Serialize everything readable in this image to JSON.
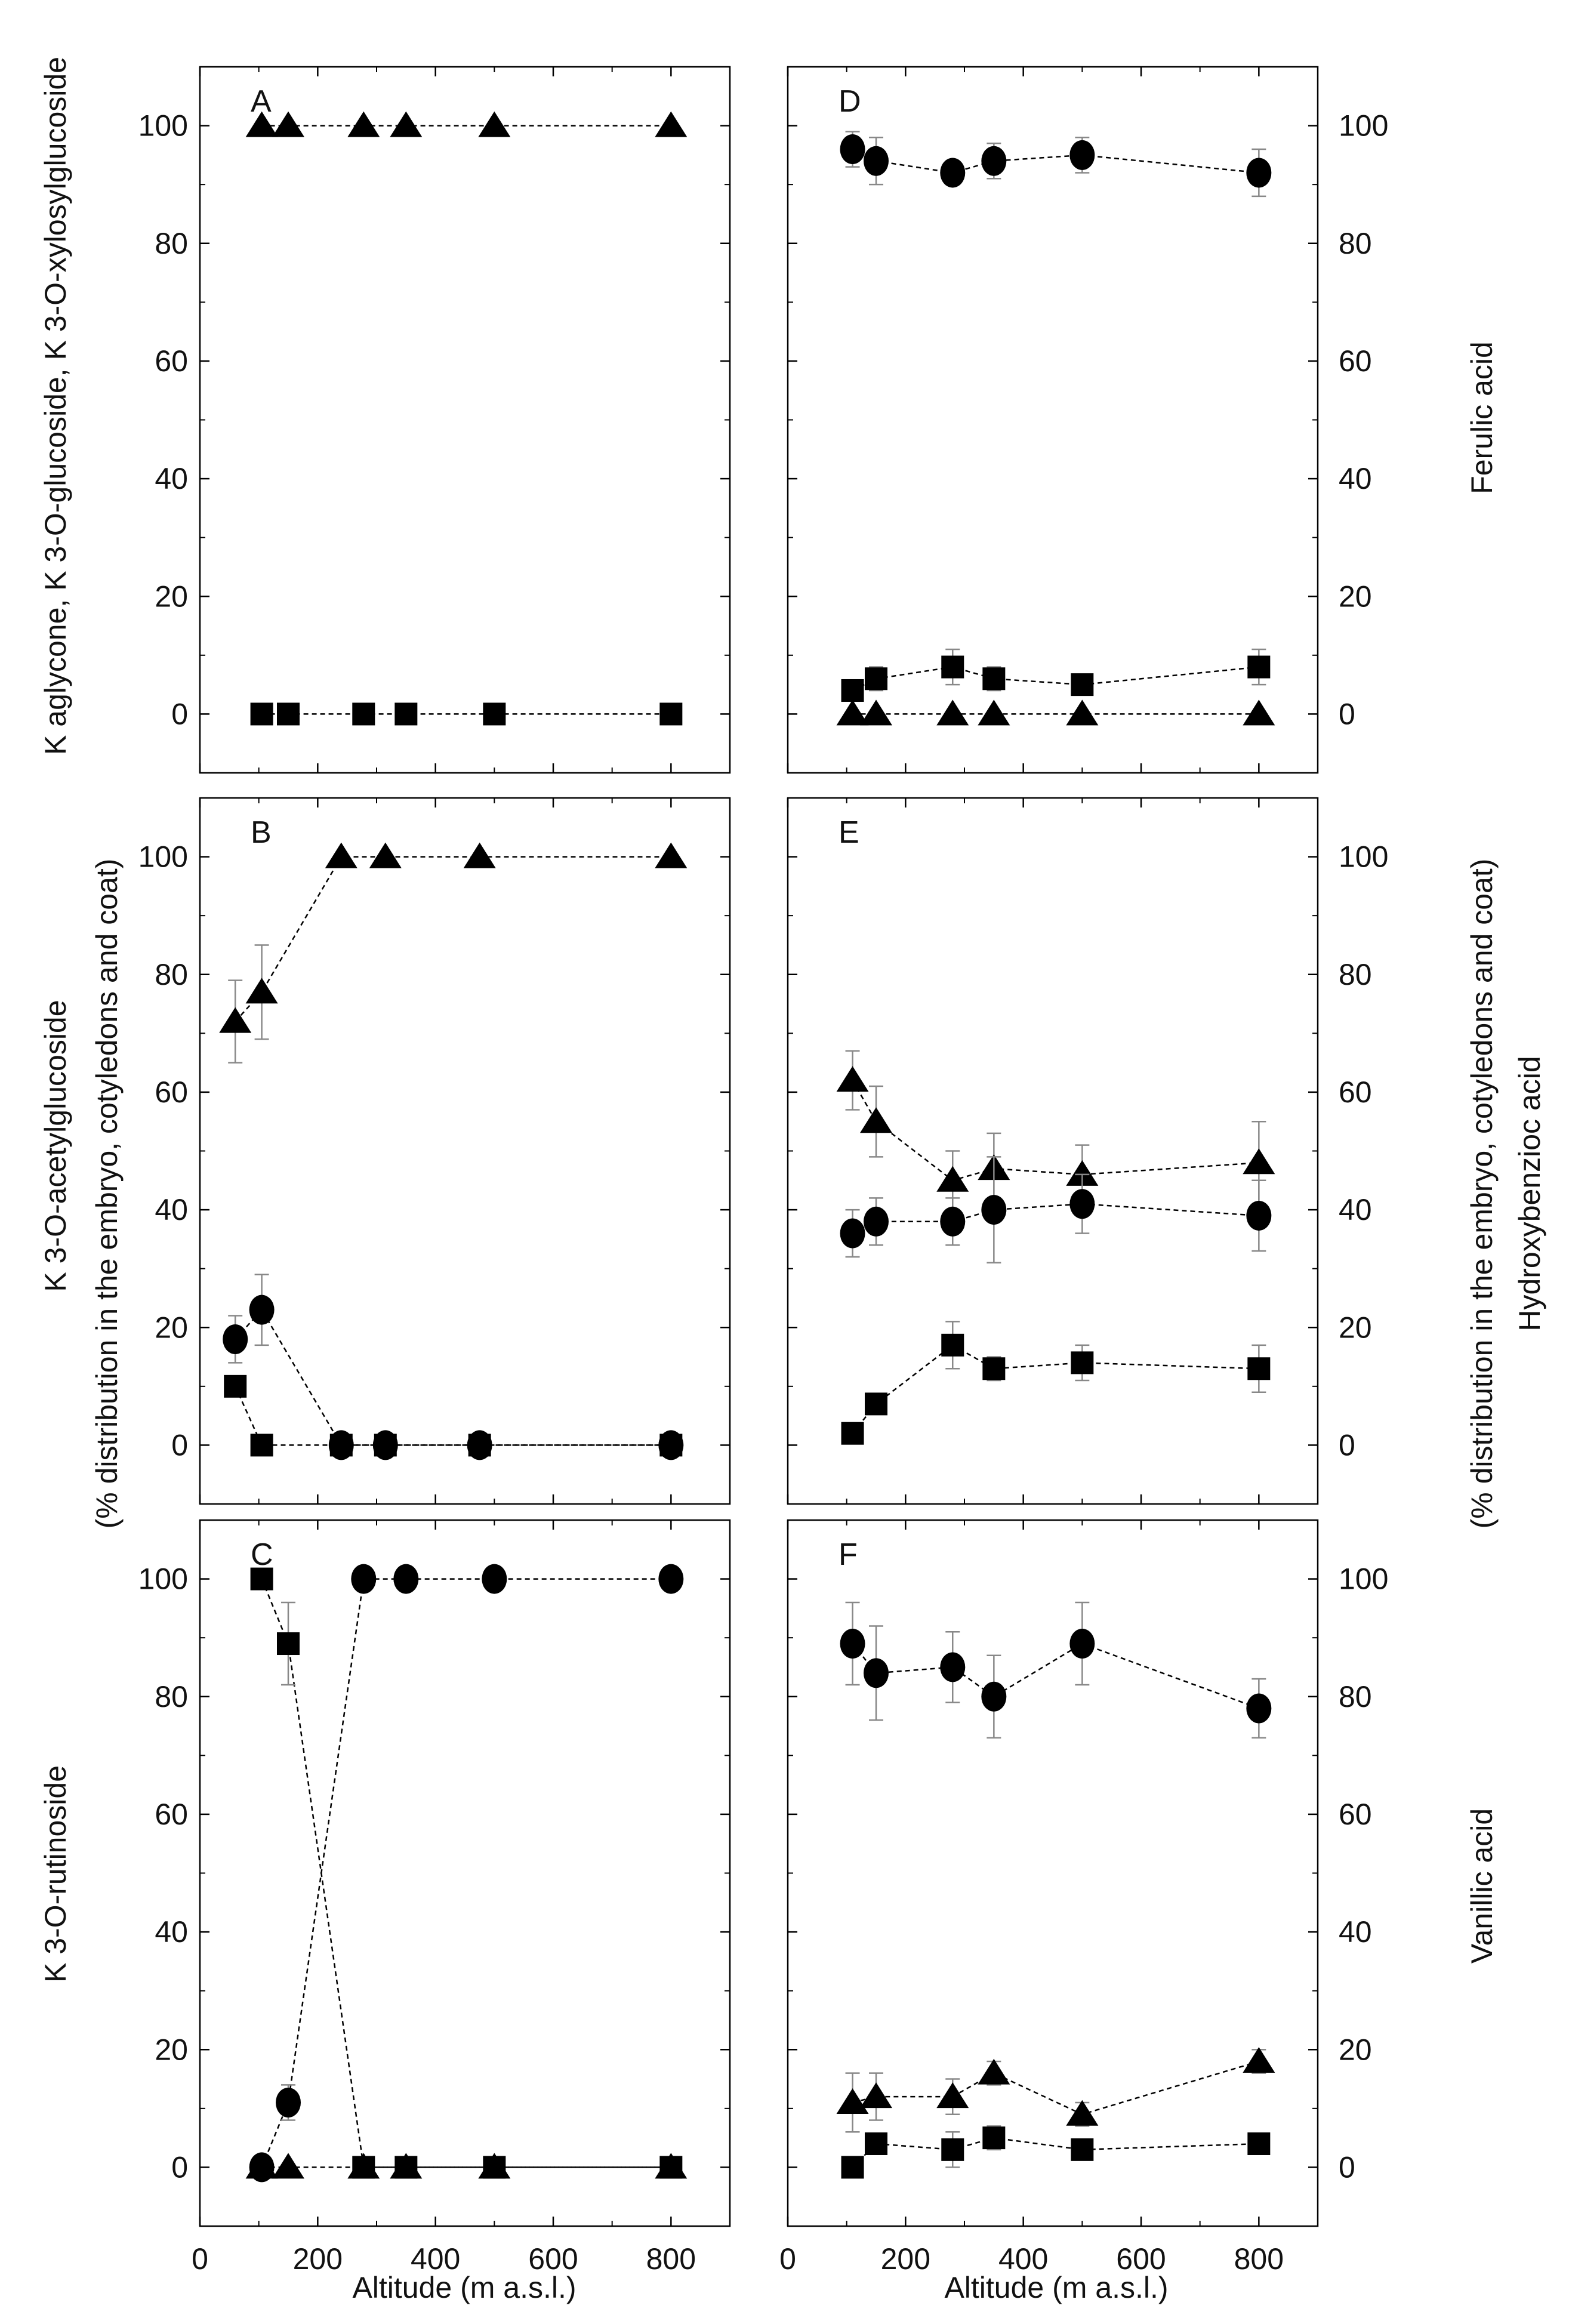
{
  "figure": {
    "left_axis_title_lines": [
      "(% distribution in the embryo, cotyledons and coat)"
    ],
    "right_axis_title_lines": [
      "(% distribution in the embryo, cotyledons and coat)"
    ],
    "x_axis_title": "Altitude (m a.s.l.)",
    "row_labels_left": [
      "K aglycone, K 3-O-glucoside, K 3-O-xylosylglucoside",
      "K 3-O-acetylglucoside",
      "K 3-O-rutinoside"
    ],
    "row_labels_right": [
      "Ferulic acid",
      "Hydroxybenzioc acid",
      "Vanillic acid"
    ],
    "colors": {
      "marker": "#000000",
      "line": "#000000",
      "error_bar": "#888888"
    }
  },
  "chart_data": [
    {
      "panel": "A",
      "type": "scatter",
      "xlim": [
        0,
        900
      ],
      "ylim": [
        -10,
        110
      ],
      "xticks": [
        0,
        200,
        400,
        600,
        800
      ],
      "yticks": [
        0,
        20,
        40,
        60,
        80,
        100
      ],
      "series": [
        {
          "name": "triangle",
          "marker": "triangle",
          "x": [
            105,
            150,
            278,
            350,
            500,
            800
          ],
          "y": [
            100,
            100,
            100,
            100,
            100,
            100
          ],
          "err": [
            0,
            0,
            0,
            0,
            0,
            0
          ]
        },
        {
          "name": "square",
          "marker": "square",
          "x": [
            105,
            150,
            278,
            350,
            500,
            800
          ],
          "y": [
            0,
            0,
            0,
            0,
            0,
            0
          ],
          "err": [
            0,
            0,
            0,
            0,
            0,
            0
          ]
        }
      ]
    },
    {
      "panel": "B",
      "type": "scatter",
      "xlim": [
        0,
        900
      ],
      "ylim": [
        -10,
        110
      ],
      "xticks": [
        0,
        200,
        400,
        600,
        800
      ],
      "yticks": [
        0,
        20,
        40,
        60,
        80,
        100
      ],
      "series": [
        {
          "name": "triangle",
          "marker": "triangle",
          "x": [
            60,
            105,
            240,
            315,
            475,
            800
          ],
          "y": [
            72,
            77,
            100,
            100,
            100,
            100
          ],
          "err": [
            7,
            8,
            0,
            0,
            0,
            0
          ]
        },
        {
          "name": "circle",
          "marker": "circle",
          "x": [
            60,
            105,
            240,
            315,
            475,
            800
          ],
          "y": [
            18,
            23,
            0,
            0,
            0,
            0
          ],
          "err": [
            4,
            6,
            0,
            0,
            0,
            0
          ]
        },
        {
          "name": "square",
          "marker": "square",
          "x": [
            60,
            105,
            240,
            315,
            475,
            800
          ],
          "y": [
            10,
            0,
            0,
            0,
            0,
            0
          ],
          "err": [
            1.5,
            0,
            0,
            0,
            0,
            0
          ]
        }
      ]
    },
    {
      "panel": "C",
      "type": "scatter",
      "xlim": [
        0,
        900
      ],
      "ylim": [
        -10,
        110
      ],
      "xticks": [
        0,
        200,
        400,
        600,
        800
      ],
      "yticks": [
        0,
        20,
        40,
        60,
        80,
        100
      ],
      "series": [
        {
          "name": "square",
          "marker": "square",
          "x": [
            105,
            150,
            278,
            350,
            500,
            800
          ],
          "y": [
            100,
            89,
            0,
            0,
            0,
            0
          ],
          "err": [
            0,
            7,
            0,
            0,
            0,
            0
          ]
        },
        {
          "name": "circle",
          "marker": "circle",
          "x": [
            105,
            150,
            278,
            350,
            500,
            800
          ],
          "y": [
            0,
            11,
            100,
            100,
            100,
            100
          ],
          "err": [
            0,
            3,
            0,
            0,
            0,
            0
          ]
        },
        {
          "name": "triangle",
          "marker": "triangle",
          "x": [
            105,
            150,
            278,
            350,
            500,
            800
          ],
          "y": [
            0,
            0,
            0,
            0,
            0,
            0
          ],
          "err": [
            0,
            0,
            0,
            0,
            0,
            0
          ]
        }
      ]
    },
    {
      "panel": "D",
      "type": "scatter",
      "xlim": [
        0,
        900
      ],
      "ylim": [
        -10,
        110
      ],
      "xticks": [
        0,
        200,
        400,
        600,
        800
      ],
      "yticks": [
        0,
        20,
        40,
        60,
        80,
        100
      ],
      "series": [
        {
          "name": "circle",
          "marker": "circle",
          "x": [
            110,
            150,
            280,
            350,
            500,
            800
          ],
          "y": [
            96,
            94,
            92,
            94,
            95,
            92
          ],
          "err": [
            3,
            4,
            2,
            3,
            3,
            4
          ]
        },
        {
          "name": "square",
          "marker": "square",
          "x": [
            110,
            150,
            280,
            350,
            500,
            800
          ],
          "y": [
            4,
            6,
            8,
            6,
            5,
            8
          ],
          "err": [
            1,
            2,
            3,
            2,
            1,
            3
          ]
        },
        {
          "name": "triangle",
          "marker": "triangle",
          "x": [
            110,
            150,
            280,
            350,
            500,
            800
          ],
          "y": [
            0,
            0,
            0,
            0,
            0,
            0
          ],
          "err": [
            0,
            0,
            0,
            0,
            0,
            0
          ]
        }
      ]
    },
    {
      "panel": "E",
      "type": "scatter",
      "xlim": [
        0,
        900
      ],
      "ylim": [
        -10,
        110
      ],
      "xticks": [
        0,
        200,
        400,
        600,
        800
      ],
      "yticks": [
        0,
        20,
        40,
        60,
        80,
        100
      ],
      "series": [
        {
          "name": "triangle",
          "marker": "triangle",
          "x": [
            110,
            150,
            280,
            350,
            500,
            800
          ],
          "y": [
            62,
            55,
            45,
            47,
            46,
            48
          ],
          "err": [
            5,
            6,
            5,
            6,
            5,
            7
          ]
        },
        {
          "name": "circle",
          "marker": "circle",
          "x": [
            110,
            150,
            280,
            350,
            500,
            800
          ],
          "y": [
            36,
            38,
            38,
            40,
            41,
            39
          ],
          "err": [
            4,
            4,
            4,
            9,
            5,
            6
          ]
        },
        {
          "name": "square",
          "marker": "square",
          "x": [
            110,
            150,
            280,
            350,
            500,
            800
          ],
          "y": [
            2,
            7,
            17,
            13,
            14,
            13
          ],
          "err": [
            0,
            1,
            4,
            2,
            3,
            4
          ]
        }
      ]
    },
    {
      "panel": "F",
      "type": "scatter",
      "xlim": [
        0,
        900
      ],
      "ylim": [
        -10,
        110
      ],
      "xticks": [
        0,
        200,
        400,
        600,
        800
      ],
      "yticks": [
        0,
        20,
        40,
        60,
        80,
        100
      ],
      "series": [
        {
          "name": "circle",
          "marker": "circle",
          "x": [
            110,
            150,
            280,
            350,
            500,
            800
          ],
          "y": [
            89,
            84,
            85,
            80,
            89,
            78
          ],
          "err": [
            7,
            8,
            6,
            7,
            7,
            5
          ]
        },
        {
          "name": "triangle",
          "marker": "triangle",
          "x": [
            110,
            150,
            280,
            350,
            500,
            800
          ],
          "y": [
            11,
            12,
            12,
            16,
            9,
            18
          ],
          "err": [
            5,
            4,
            3,
            2,
            2,
            2
          ]
        },
        {
          "name": "square",
          "marker": "square",
          "x": [
            110,
            150,
            280,
            350,
            500,
            800
          ],
          "y": [
            0,
            4,
            3,
            5,
            3,
            4
          ],
          "err": [
            0,
            0,
            3,
            2,
            0,
            0
          ]
        }
      ]
    }
  ]
}
